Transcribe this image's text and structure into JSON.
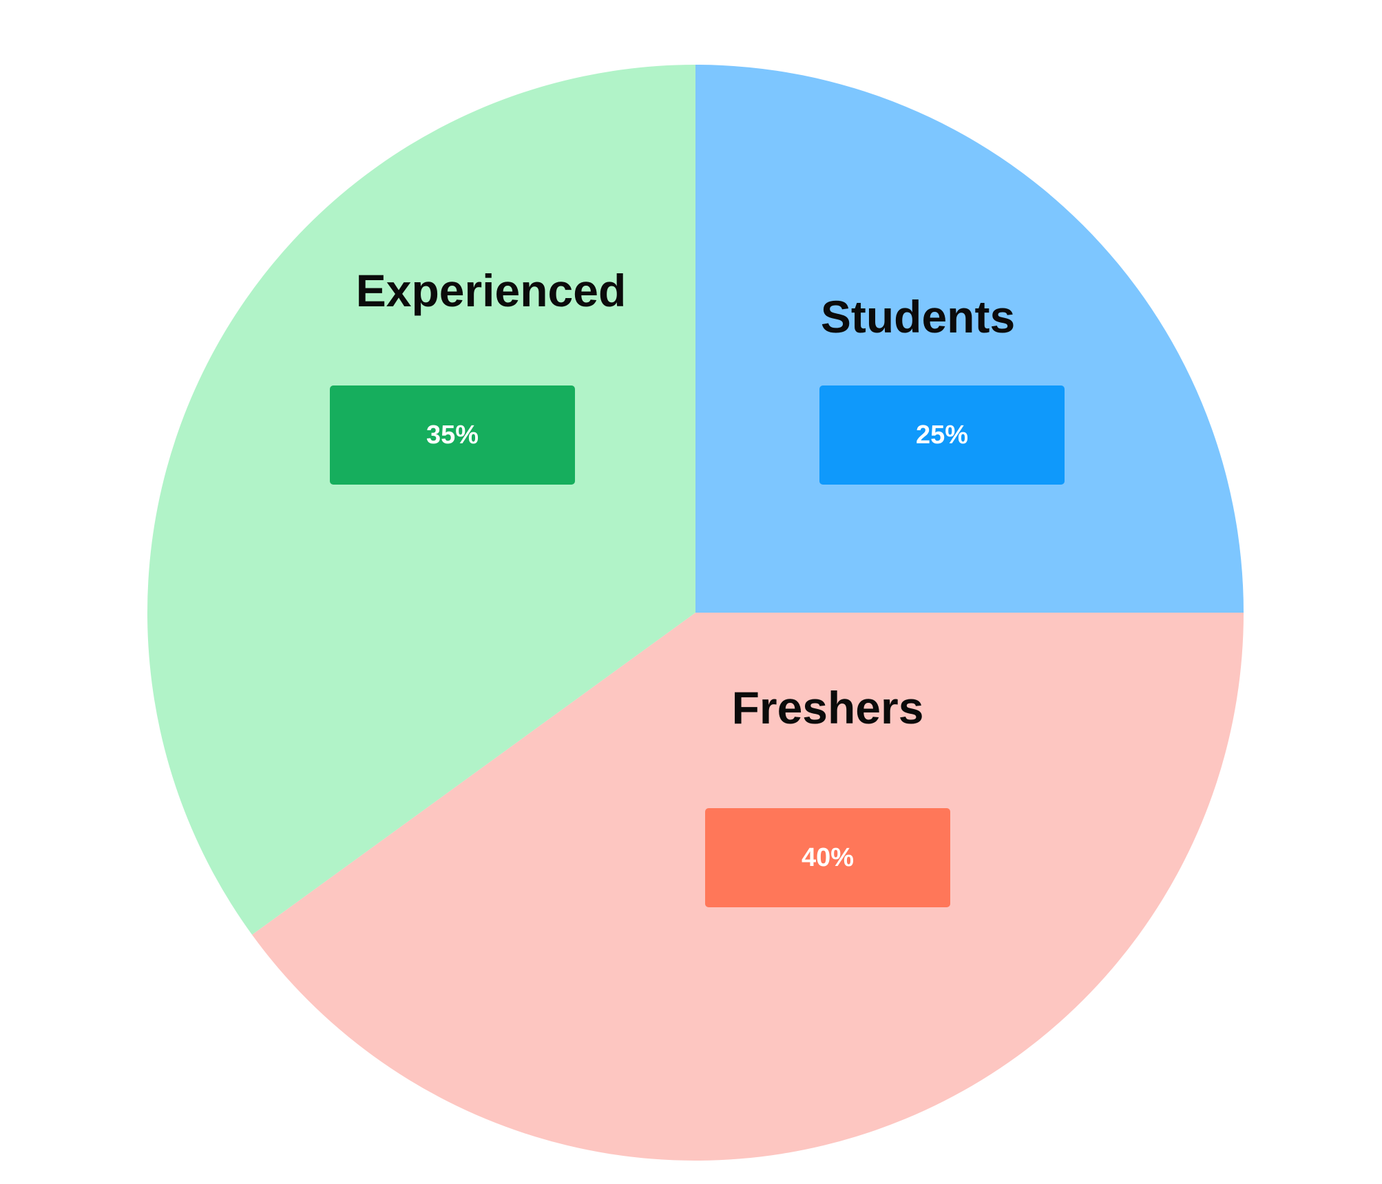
{
  "chart_data": {
    "type": "pie",
    "title": "",
    "start_angle_degrees": 90,
    "direction": "clockwise",
    "legend": "none",
    "slices": [
      {
        "name": "Students",
        "value": 25,
        "value_label": "25%",
        "fill_color": "#7dc6ff",
        "badge_color": "#0f99fb"
      },
      {
        "name": "Freshers",
        "value": 40,
        "value_label": "40%",
        "fill_color": "#fdc6c1",
        "badge_color": "#ff7759"
      },
      {
        "name": "Experienced",
        "value": 35,
        "value_label": "35%",
        "fill_color": "#b1f3c8",
        "badge_color": "#16ae5d"
      }
    ]
  }
}
